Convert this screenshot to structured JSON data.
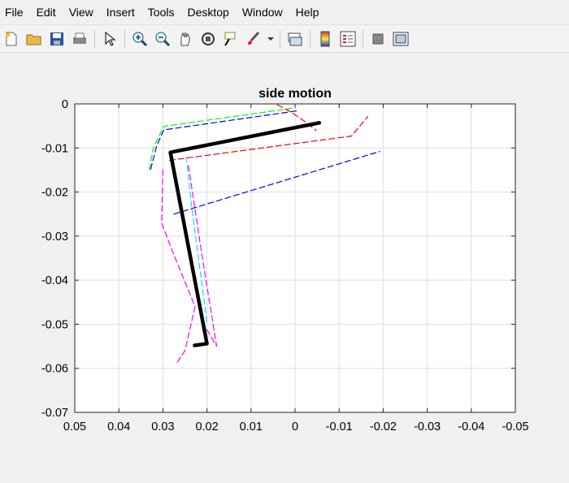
{
  "menu": [
    "File",
    "Edit",
    "View",
    "Insert",
    "Tools",
    "Desktop",
    "Window",
    "Help"
  ],
  "toolbar": [
    "new-file-icon",
    "open-folder-icon",
    "save-icon",
    "print-icon",
    "|",
    "pointer-icon",
    "|",
    "zoom-in-icon",
    "zoom-out-icon",
    "pan-icon",
    "rotate-3d-icon",
    "data-cursor-icon",
    "brush-icon",
    "brush-dropdown-icon",
    "|",
    "link-plot-icon",
    "|",
    "colorbar-icon",
    "legend-icon",
    "|",
    "hide-plot-tools-icon",
    "show-plot-tools-icon"
  ],
  "chart_data": {
    "type": "line",
    "title": "side motion",
    "xlabel": "",
    "ylabel": "",
    "xlim": [
      0.05,
      -0.05
    ],
    "ylim": [
      -0.07,
      0
    ],
    "x_reversed": true,
    "grid": true,
    "xticks": [
      "0.05",
      "0.04",
      "0.03",
      "0.02",
      "0.01",
      "0",
      "-0.01",
      "-0.02",
      "-0.03",
      "-0.04",
      "-0.05"
    ],
    "yticks": [
      "0",
      "-0.01",
      "-0.02",
      "-0.03",
      "-0.04",
      "-0.05",
      "-0.06",
      "-0.07"
    ],
    "series": [
      {
        "color": "#00ff00",
        "dash": true,
        "width": 1.2,
        "x": [
          0.0007,
          0.0298,
          0.0322,
          0.0332
        ],
        "y": [
          -0.001,
          -0.0051,
          -0.0101,
          -0.0155
        ]
      },
      {
        "color": "#0000ff",
        "dash": true,
        "width": 1.2,
        "x": [
          -0.0003,
          0.0298,
          0.0314,
          0.0328
        ],
        "y": [
          -0.0016,
          -0.0059,
          -0.0095,
          -0.0149
        ]
      },
      {
        "color": "#ff0000",
        "dash": true,
        "width": 1.2,
        "x": [
          0.004,
          0.001,
          -0.0018,
          -0.0048
        ],
        "y": [
          -0.0002,
          -0.0018,
          -0.0037,
          -0.006
        ]
      },
      {
        "color": "#ff0000",
        "dash": true,
        "width": 1.2,
        "x": [
          0.0285,
          -0.0128,
          -0.0165
        ],
        "y": [
          -0.0128,
          -0.0073,
          -0.0029
        ]
      },
      {
        "color": "#0000ff",
        "dash": true,
        "width": 1.2,
        "x": [
          0.0275,
          -0.0192
        ],
        "y": [
          -0.025,
          -0.0108
        ]
      },
      {
        "color": "#00e5e5",
        "dash": true,
        "width": 1.2,
        "x": [
          0.0247,
          0.0235,
          0.02
        ],
        "y": [
          -0.012,
          -0.023,
          -0.0495
        ]
      },
      {
        "color": "#ff00ff",
        "dash": true,
        "width": 1.2,
        "x": [
          0.0242,
          0.0215,
          0.0178,
          0.021
        ],
        "y": [
          -0.014,
          -0.032,
          -0.055,
          -0.0495
        ]
      },
      {
        "color": "#ff00ff",
        "dash": true,
        "width": 1.2,
        "x": [
          0.03,
          0.0303,
          0.028,
          0.0227,
          0.025,
          0.027
        ],
        "y": [
          -0.015,
          -0.027,
          -0.033,
          -0.046,
          -0.056,
          -0.059
        ]
      },
      {
        "color": "#000000",
        "dash": false,
        "width": 4.5,
        "x": [
          -0.0055,
          0.0283,
          0.02,
          0.0228
        ],
        "y": [
          -0.0043,
          -0.011,
          -0.0544,
          -0.0548
        ]
      }
    ]
  }
}
